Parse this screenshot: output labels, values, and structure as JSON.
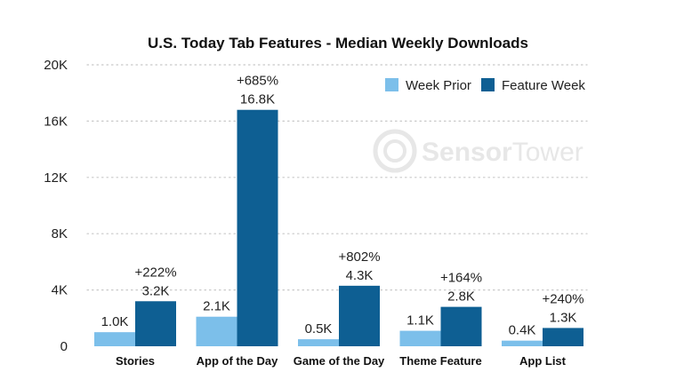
{
  "chart_data": {
    "type": "bar",
    "title": "U.S. Today Tab Features - Median Weekly Downloads",
    "xlabel": "",
    "ylabel": "",
    "ylim": [
      0,
      20000
    ],
    "yticks": [
      0,
      4000,
      8000,
      12000,
      16000,
      20000
    ],
    "ytick_labels": [
      "0",
      "4K",
      "8K",
      "12K",
      "16K",
      "20K"
    ],
    "categories": [
      "Stories",
      "App of the Day",
      "Game of the Day",
      "Theme Feature",
      "App List"
    ],
    "series": [
      {
        "name": "Week Prior",
        "color": "#7cbfea",
        "values": [
          1000,
          2100,
          500,
          1100,
          400
        ],
        "labels": [
          "1.0K",
          "2.1K",
          "0.5K",
          "1.1K",
          "0.4K"
        ]
      },
      {
        "name": "Feature Week",
        "color": "#0e5f93",
        "values": [
          3200,
          16800,
          4300,
          2800,
          1300
        ],
        "labels": [
          "3.2K",
          "16.8K",
          "4.3K",
          "2.8K",
          "1.3K"
        ]
      }
    ],
    "change_labels": [
      "+222%",
      "+685%",
      "+802%",
      "+164%",
      "+240%"
    ],
    "grid": "horizontal dotted",
    "legend": "top-right"
  },
  "watermark": {
    "text_a": "Sensor",
    "text_b": "Tower"
  }
}
